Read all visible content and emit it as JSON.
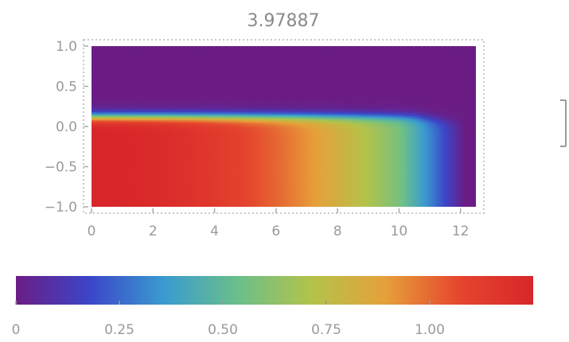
{
  "chart_data": {
    "type": "heatmap",
    "title": "3.97887",
    "xlabel": "",
    "ylabel": "",
    "xlim": [
      0,
      12.5
    ],
    "ylim": [
      -1.0,
      1.0
    ],
    "x_ticks": [
      {
        "value": 0,
        "label": "0"
      },
      {
        "value": 2,
        "label": "2"
      },
      {
        "value": 4,
        "label": "4"
      },
      {
        "value": 6,
        "label": "6"
      },
      {
        "value": 8,
        "label": "8"
      },
      {
        "value": 10,
        "label": "10"
      },
      {
        "value": 12,
        "label": "12"
      }
    ],
    "y_ticks": [
      {
        "value": 1.0,
        "label": "1.0"
      },
      {
        "value": 0.5,
        "label": "0.5"
      },
      {
        "value": 0.0,
        "label": "0.0"
      },
      {
        "value": -0.5,
        "label": "−0.5"
      },
      {
        "value": -1.0,
        "label": "−1.0"
      }
    ],
    "grid": false,
    "colormap": "rainbow",
    "colormap_stops": [
      "#6b1d85",
      "#3b46c8",
      "#3a9bd0",
      "#6abf8a",
      "#b3c34a",
      "#e6a03a",
      "#e5462e",
      "#d8262a"
    ],
    "colorbar": {
      "orientation": "horizontal",
      "placement": "bottom",
      "range": [
        0,
        1.25
      ],
      "ticks": [
        {
          "value": 0,
          "label": "0"
        },
        {
          "value": 0.25,
          "label": "0.25"
        },
        {
          "value": 0.5,
          "label": "0.50"
        },
        {
          "value": 0.75,
          "label": "0.75"
        },
        {
          "value": 1.0,
          "label": "1.00"
        }
      ]
    }
  }
}
